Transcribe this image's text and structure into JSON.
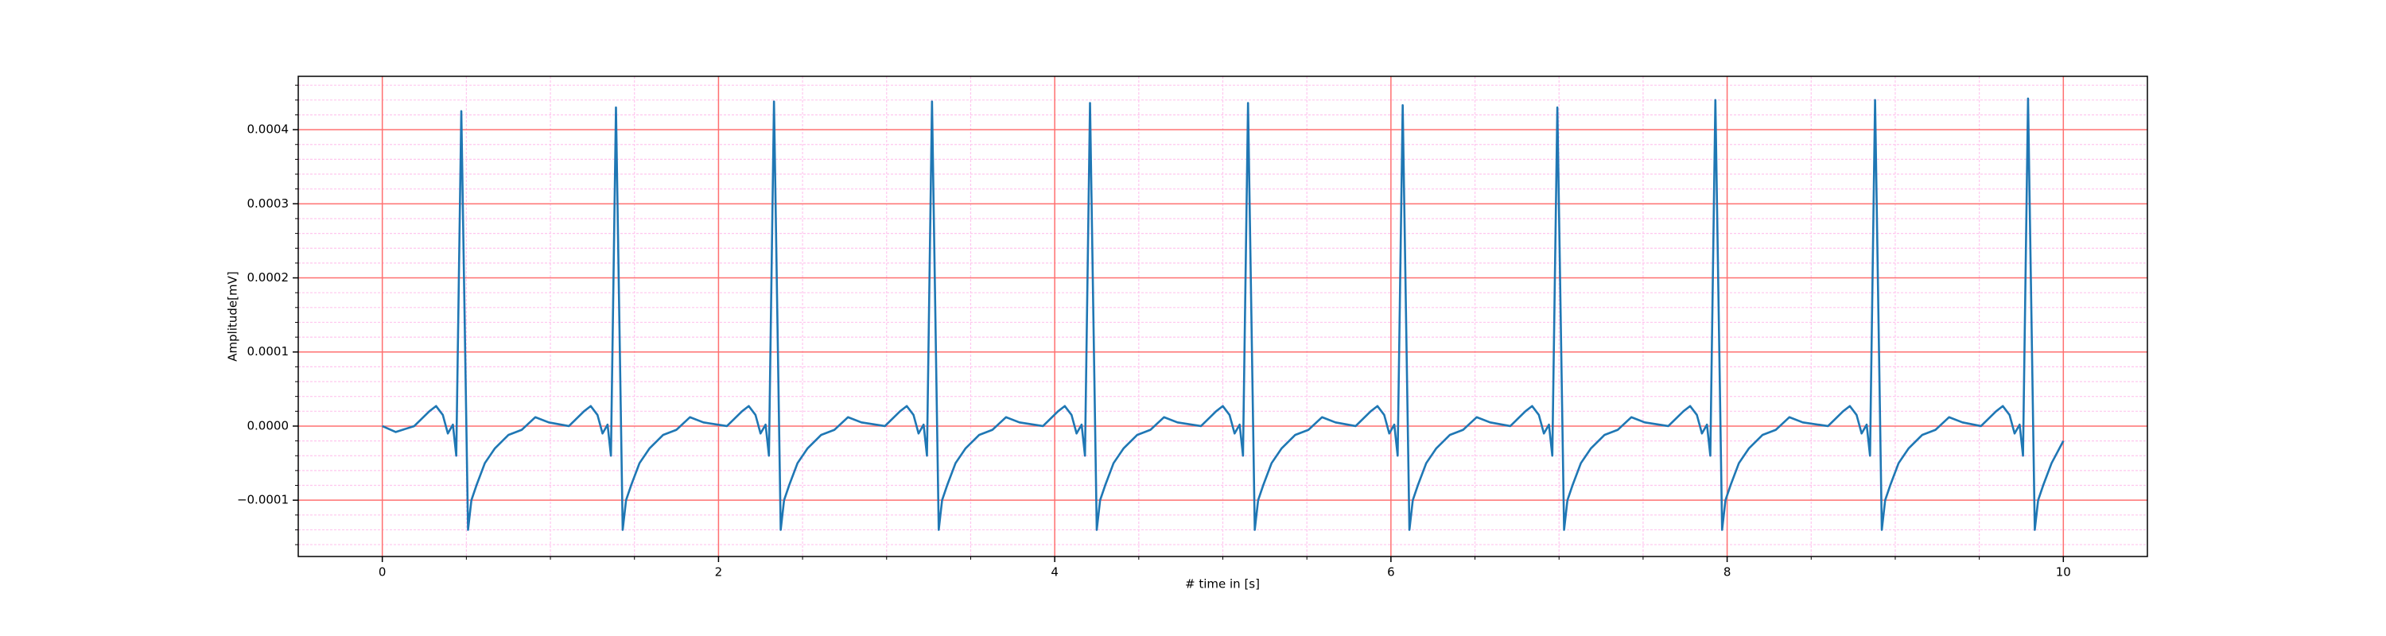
{
  "chart_data": {
    "type": "line",
    "xlabel": "# time in [s]",
    "ylabel": "Amplitude[mV]",
    "color": "#1f77b4",
    "grid": true,
    "grid_color": "#ff7070",
    "minor_grid": true,
    "minor_grid_color": "#ffc6ee",
    "xlim": [
      -0.5,
      10.5
    ],
    "ylim": [
      -0.000176,
      0.000472
    ],
    "xticks": [
      0,
      2,
      4,
      6,
      8,
      10
    ],
    "yticks": [
      {
        "value": -0.0001,
        "label": "−0.0001"
      },
      {
        "value": 0,
        "label": "0.0000"
      },
      0.0001,
      0.0002,
      0.0003,
      0.0004
    ],
    "minor_xticks": [
      0.5,
      1,
      1.5,
      2.5,
      3,
      3.5,
      4.5,
      5,
      5.5,
      6.5,
      7,
      7.5,
      8.5,
      9,
      9.5
    ],
    "minor_yticks": [
      -0.00016,
      -0.00014,
      -0.00012,
      -8e-05,
      -6e-05,
      -4e-05,
      -2e-05,
      2e-05,
      4e-05,
      6e-05,
      8e-05,
      0.00012,
      0.00014,
      0.00016,
      0.00018,
      0.00022,
      0.00024,
      0.00026,
      0.00028,
      0.00032,
      0.00034,
      0.00036,
      0.00038,
      0.00042,
      0.00044,
      0.00046
    ],
    "x": [
      0,
      0.08,
      0.19,
      0.28,
      0.32,
      0.36,
      0.39,
      0.42,
      0.44,
      0.47,
      0.51,
      0.53,
      0.56,
      0.61,
      0.67,
      0.75,
      0.83,
      0.91,
      0.99,
      1.11,
      1.2,
      1.24,
      1.28,
      1.31,
      1.34,
      1.36,
      1.39,
      1.43,
      1.45,
      1.48,
      1.53,
      1.59,
      1.67,
      1.75,
      1.83,
      1.91,
      2.05,
      2.14,
      2.18,
      2.22,
      2.25,
      2.28,
      2.3,
      2.33,
      2.37,
      2.39,
      2.42,
      2.47,
      2.53,
      2.61,
      2.69,
      2.77,
      2.85,
      2.99,
      3.08,
      3.12,
      3.16,
      3.19,
      3.22,
      3.24,
      3.27,
      3.31,
      3.33,
      3.36,
      3.41,
      3.47,
      3.55,
      3.63,
      3.71,
      3.79,
      3.93,
      4.02,
      4.06,
      4.1,
      4.13,
      4.16,
      4.18,
      4.21,
      4.25,
      4.27,
      4.3,
      4.35,
      4.41,
      4.49,
      4.57,
      4.65,
      4.73,
      4.87,
      4.96,
      5.0,
      5.04,
      5.07,
      5.1,
      5.12,
      5.15,
      5.19,
      5.21,
      5.24,
      5.29,
      5.35,
      5.43,
      5.51,
      5.59,
      5.67,
      5.79,
      5.88,
      5.92,
      5.96,
      5.99,
      6.02,
      6.04,
      6.07,
      6.11,
      6.13,
      6.16,
      6.21,
      6.27,
      6.35,
      6.43,
      6.51,
      6.59,
      6.71,
      6.8,
      6.84,
      6.88,
      6.91,
      6.94,
      6.96,
      6.99,
      7.03,
      7.05,
      7.08,
      7.13,
      7.19,
      7.27,
      7.35,
      7.43,
      7.51,
      7.65,
      7.74,
      7.78,
      7.82,
      7.85,
      7.88,
      7.9,
      7.93,
      7.97,
      7.99,
      8.02,
      8.07,
      8.13,
      8.21,
      8.29,
      8.37,
      8.45,
      8.6,
      8.69,
      8.73,
      8.77,
      8.8,
      8.83,
      8.85,
      8.88,
      8.92,
      8.94,
      8.97,
      9.02,
      9.08,
      9.16,
      9.24,
      9.32,
      9.4,
      9.51,
      9.6,
      9.64,
      9.68,
      9.71,
      9.74,
      9.76,
      9.79,
      9.83,
      9.85,
      9.88,
      9.93,
      10
    ],
    "values": [
      0,
      -8e-06,
      0,
      2e-05,
      2.7e-05,
      1.5e-05,
      -1e-05,
      2e-06,
      -4e-05,
      0.000425,
      -0.00014,
      -0.0001,
      -8e-05,
      -5e-05,
      -3e-05,
      -1.2e-05,
      -5e-06,
      1.2e-05,
      5e-06,
      0,
      2e-05,
      2.7e-05,
      1.5e-05,
      -1e-05,
      2e-06,
      -4e-05,
      0.00043,
      -0.00014,
      -0.0001,
      -8e-05,
      -5e-05,
      -3e-05,
      -1.2e-05,
      -5e-06,
      1.2e-05,
      5e-06,
      0,
      2e-05,
      2.7e-05,
      1.5e-05,
      -1e-05,
      2e-06,
      -4e-05,
      0.000438,
      -0.00014,
      -0.0001,
      -8e-05,
      -5e-05,
      -3e-05,
      -1.2e-05,
      -5e-06,
      1.2e-05,
      5e-06,
      0,
      2e-05,
      2.7e-05,
      1.5e-05,
      -1e-05,
      2e-06,
      -4e-05,
      0.000438,
      -0.00014,
      -0.0001,
      -8e-05,
      -5e-05,
      -3e-05,
      -1.2e-05,
      -5e-06,
      1.2e-05,
      5e-06,
      0,
      2e-05,
      2.7e-05,
      1.5e-05,
      -1e-05,
      2e-06,
      -4e-05,
      0.000436,
      -0.00014,
      -0.0001,
      -8e-05,
      -5e-05,
      -3e-05,
      -1.2e-05,
      -5e-06,
      1.2e-05,
      5e-06,
      0,
      2e-05,
      2.7e-05,
      1.5e-05,
      -1e-05,
      2e-06,
      -4e-05,
      0.000436,
      -0.00014,
      -0.0001,
      -8e-05,
      -5e-05,
      -3e-05,
      -1.2e-05,
      -5e-06,
      1.2e-05,
      5e-06,
      0,
      2e-05,
      2.7e-05,
      1.5e-05,
      -1e-05,
      2e-06,
      -4e-05,
      0.000433,
      -0.00014,
      -0.0001,
      -8e-05,
      -5e-05,
      -3e-05,
      -1.2e-05,
      -5e-06,
      1.2e-05,
      5e-06,
      0,
      2e-05,
      2.7e-05,
      1.5e-05,
      -1e-05,
      2e-06,
      -4e-05,
      0.00043,
      -0.00014,
      -0.0001,
      -8e-05,
      -5e-05,
      -3e-05,
      -1.2e-05,
      -5e-06,
      1.2e-05,
      5e-06,
      0,
      2e-05,
      2.7e-05,
      1.5e-05,
      -1e-05,
      2e-06,
      -4e-05,
      0.00044,
      -0.00014,
      -0.0001,
      -8e-05,
      -5e-05,
      -3e-05,
      -1.2e-05,
      -5e-06,
      1.2e-05,
      5e-06,
      0,
      2e-05,
      2.7e-05,
      1.5e-05,
      -1e-05,
      2e-06,
      -4e-05,
      0.00044,
      -0.00014,
      -0.0001,
      -8e-05,
      -5e-05,
      -3e-05,
      -1.2e-05,
      -5e-06,
      1.2e-05,
      5e-06,
      0,
      2e-05,
      2.7e-05,
      1.5e-05,
      -1e-05,
      2e-06,
      -4e-05,
      0.000442,
      -0.00014,
      -0.0001,
      -8e-05,
      -5e-05,
      -2e-05
    ]
  }
}
